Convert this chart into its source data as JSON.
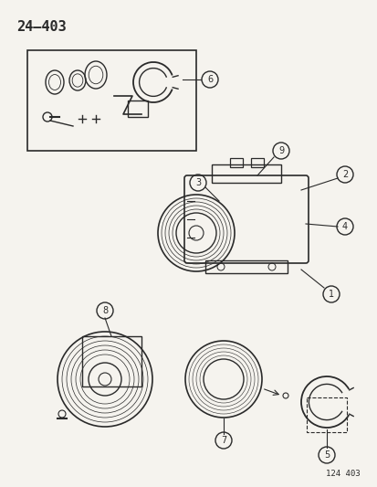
{
  "title": "24–403",
  "footer": "124 403",
  "bg_color": "#f5f3ee",
  "line_color": "#2a2a2a",
  "label_numbers": [
    1,
    2,
    3,
    4,
    5,
    6,
    7,
    8,
    9
  ],
  "figsize": [
    4.14,
    5.33
  ],
  "dpi": 100
}
